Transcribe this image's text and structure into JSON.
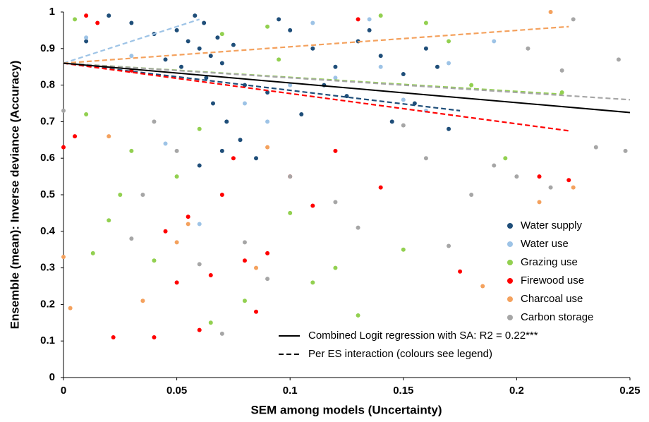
{
  "chart_data": {
    "type": "scatter",
    "xlabel": "SEM among models (Uncertainty)",
    "ylabel": "Ensemble (mean):  Inverse deviance (Accuracy)",
    "xlim": [
      0,
      0.25
    ],
    "xticks": [
      0,
      0.05,
      0.1,
      0.15,
      0.2,
      0.25
    ],
    "ylim": [
      0,
      1
    ],
    "yticks": [
      0,
      0.1,
      0.2,
      0.3,
      0.4,
      0.5,
      0.6,
      0.7,
      0.8,
      0.9,
      1
    ],
    "grid": false,
    "legend_position": "lower right",
    "series": [
      {
        "name": "Water supply",
        "color": "#1f4e79",
        "x": [
          0.05,
          0.055,
          0.06,
          0.062,
          0.065,
          0.068,
          0.07,
          0.058,
          0.052,
          0.075,
          0.08,
          0.045,
          0.04,
          0.09,
          0.1,
          0.11,
          0.12,
          0.13,
          0.14,
          0.15,
          0.16,
          0.17,
          0.063,
          0.066,
          0.072,
          0.078,
          0.085,
          0.095,
          0.105,
          0.115,
          0.125,
          0.135,
          0.145,
          0.155,
          0.165,
          0.03,
          0.02,
          0.01,
          0.06,
          0.07
        ],
        "values": [
          0.95,
          0.92,
          0.9,
          0.97,
          0.88,
          0.93,
          0.86,
          0.99,
          0.85,
          0.91,
          0.8,
          0.87,
          0.94,
          0.78,
          0.95,
          0.9,
          0.85,
          0.92,
          0.88,
          0.83,
          0.9,
          0.68,
          0.82,
          0.75,
          0.7,
          0.65,
          0.6,
          0.98,
          0.72,
          0.8,
          0.77,
          0.95,
          0.7,
          0.75,
          0.85,
          0.97,
          0.99,
          0.92,
          0.58,
          0.62
        ],
        "trend": {
          "x": [
            0,
            0.175
          ],
          "y": [
            0.86,
            0.73
          ]
        }
      },
      {
        "name": "Water use",
        "color": "#9dc3e6",
        "x": [
          0.01,
          0.03,
          0.045,
          0.08,
          0.1,
          0.12,
          0.135,
          0.15,
          0.17,
          0.19,
          0.06,
          0.09,
          0.11,
          0.14,
          0.16
        ],
        "values": [
          0.93,
          0.88,
          0.64,
          0.75,
          0.8,
          0.82,
          0.98,
          0.76,
          0.86,
          0.92,
          0.42,
          0.7,
          0.97,
          0.85,
          0.73
        ],
        "trend": {
          "x": [
            0,
            0.06
          ],
          "y": [
            0.86,
            0.98
          ]
        }
      },
      {
        "name": "Grazing use",
        "color": "#92d050",
        "x": [
          0.005,
          0.01,
          0.02,
          0.03,
          0.04,
          0.05,
          0.06,
          0.07,
          0.08,
          0.09,
          0.1,
          0.11,
          0.12,
          0.13,
          0.14,
          0.15,
          0.16,
          0.17,
          0.18,
          0.195,
          0.22,
          0.013,
          0.025,
          0.065,
          0.095
        ],
        "values": [
          0.98,
          0.72,
          0.43,
          0.62,
          0.32,
          0.55,
          0.68,
          0.94,
          0.21,
          0.96,
          0.45,
          0.26,
          0.3,
          0.17,
          0.99,
          0.35,
          0.97,
          0.92,
          0.8,
          0.6,
          0.78,
          0.34,
          0.5,
          0.15,
          0.87
        ],
        "trend": {
          "x": [
            0,
            0.22
          ],
          "y": [
            0.86,
            0.775
          ]
        }
      },
      {
        "name": "Firewood use",
        "color": "#ff0000",
        "x": [
          0,
          0.005,
          0.01,
          0.015,
          0.022,
          0.03,
          0.04,
          0.045,
          0.05,
          0.055,
          0.06,
          0.065,
          0.07,
          0.075,
          0.08,
          0.085,
          0.09,
          0.1,
          0.11,
          0.12,
          0.13,
          0.14,
          0.175,
          0.21,
          0.223
        ],
        "values": [
          0.63,
          0.66,
          0.99,
          0.97,
          0.11,
          0.84,
          0.11,
          0.4,
          0.26,
          0.44,
          0.13,
          0.28,
          0.5,
          0.6,
          0.32,
          0.18,
          0.34,
          0.55,
          0.47,
          0.62,
          0.98,
          0.52,
          0.29,
          0.55,
          0.54
        ],
        "trend": {
          "x": [
            0,
            0.223
          ],
          "y": [
            0.86,
            0.675
          ]
        }
      },
      {
        "name": "Charcoal use",
        "color": "#f4a15d",
        "x": [
          0,
          0.003,
          0.02,
          0.035,
          0.05,
          0.055,
          0.085,
          0.09,
          0.185,
          0.21,
          0.215,
          0.225
        ],
        "values": [
          0.33,
          0.19,
          0.66,
          0.21,
          0.37,
          0.42,
          0.3,
          0.63,
          0.25,
          0.48,
          1,
          0.52
        ],
        "trend": {
          "x": [
            0,
            0.223
          ],
          "y": [
            0.86,
            0.96
          ]
        }
      },
      {
        "name": "Carbon storage",
        "color": "#a6a6a6",
        "x": [
          0,
          0.03,
          0.035,
          0.04,
          0.05,
          0.06,
          0.07,
          0.08,
          0.09,
          0.1,
          0.12,
          0.13,
          0.15,
          0.16,
          0.17,
          0.18,
          0.19,
          0.2,
          0.205,
          0.215,
          0.22,
          0.225,
          0.235,
          0.245,
          0.248
        ],
        "values": [
          0.73,
          0.38,
          0.5,
          0.7,
          0.62,
          0.31,
          0.12,
          0.37,
          0.27,
          0.55,
          0.48,
          0.41,
          0.69,
          0.6,
          0.36,
          0.5,
          0.58,
          0.55,
          0.9,
          0.52,
          0.84,
          0.98,
          0.63,
          0.87,
          0.62
        ],
        "trend": {
          "x": [
            0,
            0.25
          ],
          "y": [
            0.86,
            0.76
          ]
        }
      }
    ],
    "regression_lines": [
      {
        "name": "Combined Logit regression with SA: R2 = 0.22***",
        "style": "solid",
        "color": "#000000",
        "x": [
          0,
          0.25
        ],
        "y": [
          0.86,
          0.725
        ]
      },
      {
        "name": "Per ES interaction (colours see legend)",
        "style": "dashed",
        "color": "#000000"
      }
    ]
  }
}
